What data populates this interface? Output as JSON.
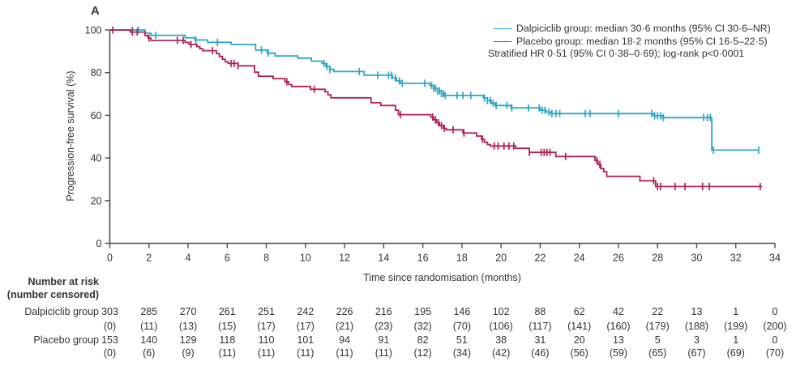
{
  "panel_label": "A",
  "colors": {
    "dalpiciclib": "#2BA7C7",
    "placebo": "#B32057",
    "axis": "#4d4d4d",
    "text": "#333333"
  },
  "legend": {
    "lines": [
      {
        "series": "dalpiciclib",
        "text": "Dalpiciclib group: median 30·6 months (95% CI 30·6–NR)"
      },
      {
        "series": "placebo",
        "text": "Placebo group: median 18·2 months (95% CI 16·5–22·5)"
      },
      {
        "series": null,
        "text": "Stratified HR 0·51 (95% CI 0·38–0·69); log-rank p<0·0001"
      }
    ]
  },
  "chart_data": {
    "type": "line",
    "subtype": "kaplan-meier-step",
    "xlabel": "Time since randomisation (months)",
    "ylabel": "Progression-free survival (%)",
    "xlim": [
      0,
      34
    ],
    "ylim": [
      0,
      100
    ],
    "xticks": [
      0,
      2,
      4,
      6,
      8,
      10,
      12,
      14,
      16,
      18,
      20,
      22,
      24,
      26,
      28,
      30,
      32,
      34
    ],
    "yticks": [
      0,
      20,
      40,
      60,
      80,
      100
    ],
    "grid": false,
    "legend_position": "top-right",
    "stats": "Stratified HR 0·51 (95% CI 0·38–0·69); log-rank p<0·0001",
    "series": [
      {
        "name": "Dalpiciclib group",
        "color_key": "dalpiciclib",
        "median_months": "30·6",
        "ci_95": "30·6–NR",
        "steps": [
          [
            0,
            100
          ],
          [
            1.8,
            98.5
          ],
          [
            2.1,
            97.5
          ],
          [
            3.85,
            96.3
          ],
          [
            4.35,
            95.3
          ],
          [
            5.0,
            94.2
          ],
          [
            6.2,
            93.2
          ],
          [
            7.45,
            90.6
          ],
          [
            8.05,
            89.1
          ],
          [
            8.45,
            87.8
          ],
          [
            9.6,
            86.8
          ],
          [
            10.3,
            85.4
          ],
          [
            10.85,
            84.3
          ],
          [
            11.05,
            82.9
          ],
          [
            11.25,
            81.5
          ],
          [
            11.45,
            80.5
          ],
          [
            13.0,
            78.8
          ],
          [
            14.45,
            77.5
          ],
          [
            14.65,
            76.2
          ],
          [
            14.85,
            75.0
          ],
          [
            16.35,
            74.0
          ],
          [
            16.55,
            72.7
          ],
          [
            16.75,
            71.4
          ],
          [
            16.95,
            70.2
          ],
          [
            17.1,
            69.3
          ],
          [
            19.1,
            68.1
          ],
          [
            19.3,
            66.9
          ],
          [
            19.5,
            65.7
          ],
          [
            19.7,
            64.6
          ],
          [
            20.5,
            63.5
          ],
          [
            22.0,
            62.4
          ],
          [
            22.3,
            61.5
          ],
          [
            22.55,
            60.8
          ],
          [
            27.8,
            59.8
          ],
          [
            28.25,
            58.9
          ],
          [
            30.77,
            43.7
          ]
        ],
        "end_time": 33.17,
        "censor_times": [
          1.15,
          1.45,
          2.35,
          4.4,
          5.5,
          7.75,
          8.1,
          10.95,
          11.1,
          11.25,
          12.75,
          13.7,
          14.25,
          14.4,
          14.6,
          14.8,
          14.95,
          16.1,
          16.45,
          16.55,
          16.65,
          16.75,
          16.85,
          16.95,
          17.05,
          17.15,
          17.75,
          18.05,
          18.45,
          19.15,
          19.3,
          19.45,
          19.6,
          19.75,
          20.3,
          20.55,
          21.4,
          21.95,
          22.1,
          22.25,
          22.45,
          22.6,
          22.8,
          23.0,
          24.3,
          24.55,
          26.0,
          27.7,
          27.85,
          28.0,
          28.15,
          28.3,
          30.35,
          30.55,
          30.7,
          30.85,
          33.17
        ]
      },
      {
        "name": "Placebo group",
        "color_key": "placebo",
        "median_months": "18·2",
        "ci_95": "16·5–22·5",
        "steps": [
          [
            0,
            100
          ],
          [
            1.05,
            99.0
          ],
          [
            1.8,
            97.4
          ],
          [
            1.95,
            96.2
          ],
          [
            2.1,
            95.1
          ],
          [
            3.85,
            94.1
          ],
          [
            4.05,
            93.2
          ],
          [
            4.45,
            92.2
          ],
          [
            4.6,
            91.2
          ],
          [
            4.75,
            90.3
          ],
          [
            5.45,
            88.9
          ],
          [
            5.6,
            87.6
          ],
          [
            5.75,
            86.3
          ],
          [
            5.9,
            85.1
          ],
          [
            6.05,
            84.3
          ],
          [
            6.55,
            83.2
          ],
          [
            7.4,
            80.2
          ],
          [
            7.6,
            78.3
          ],
          [
            8.35,
            77.2
          ],
          [
            8.95,
            75.7
          ],
          [
            9.15,
            74.4
          ],
          [
            9.3,
            73.5
          ],
          [
            10.25,
            72.2
          ],
          [
            11.0,
            71.0
          ],
          [
            11.15,
            69.6
          ],
          [
            11.3,
            68.2
          ],
          [
            13.35,
            65.9
          ],
          [
            13.85,
            64.6
          ],
          [
            14.6,
            62.4
          ],
          [
            14.75,
            60.3
          ],
          [
            16.4,
            59.2
          ],
          [
            16.55,
            57.9
          ],
          [
            16.7,
            56.5
          ],
          [
            16.85,
            55.2
          ],
          [
            17.05,
            53.9
          ],
          [
            17.2,
            53.2
          ],
          [
            18.05,
            51.7
          ],
          [
            18.75,
            50.3
          ],
          [
            19.0,
            48.8
          ],
          [
            19.15,
            47.4
          ],
          [
            19.3,
            46.3
          ],
          [
            19.45,
            45.6
          ],
          [
            20.75,
            44.5
          ],
          [
            21.45,
            42.6
          ],
          [
            22.8,
            40.7
          ],
          [
            24.8,
            38.8
          ],
          [
            24.95,
            36.9
          ],
          [
            25.1,
            35.0
          ],
          [
            25.25,
            33.6
          ],
          [
            25.4,
            31.4
          ],
          [
            27.1,
            29.3
          ],
          [
            27.9,
            26.6
          ]
        ],
        "end_time": 33.35,
        "censor_times": [
          0.15,
          1.15,
          1.4,
          2.0,
          3.45,
          3.75,
          4.15,
          5.25,
          6.2,
          6.35,
          6.55,
          9.05,
          10.45,
          14.85,
          16.5,
          16.65,
          16.8,
          16.95,
          17.1,
          17.55,
          18.1,
          19.05,
          19.65,
          19.85,
          20.15,
          20.4,
          20.65,
          21.45,
          22.05,
          22.2,
          22.35,
          22.5,
          23.3,
          24.9,
          25.05,
          27.8,
          28.0,
          28.15,
          28.9,
          29.4,
          30.3,
          30.65,
          33.25
        ]
      }
    ]
  },
  "risk_table": {
    "header_line1": "Number at risk",
    "header_line2": "(number censored)",
    "times": [
      0,
      2,
      4,
      6,
      8,
      10,
      12,
      14,
      16,
      18,
      20,
      22,
      24,
      26,
      28,
      30,
      32,
      34
    ],
    "rows": [
      {
        "label": "Dalpiciclib group",
        "at_risk": [
          303,
          285,
          270,
          261,
          251,
          242,
          226,
          216,
          195,
          146,
          102,
          88,
          62,
          42,
          22,
          13,
          1,
          0
        ],
        "censored": [
          0,
          11,
          13,
          15,
          17,
          17,
          21,
          23,
          32,
          70,
          106,
          117,
          141,
          160,
          179,
          188,
          199,
          200
        ]
      },
      {
        "label": "Placebo group",
        "at_risk": [
          153,
          140,
          129,
          118,
          110,
          101,
          94,
          91,
          82,
          51,
          38,
          31,
          20,
          13,
          5,
          3,
          1,
          0
        ],
        "censored": [
          0,
          6,
          9,
          11,
          11,
          11,
          11,
          11,
          12,
          34,
          42,
          46,
          56,
          59,
          65,
          67,
          69,
          70
        ]
      }
    ]
  }
}
